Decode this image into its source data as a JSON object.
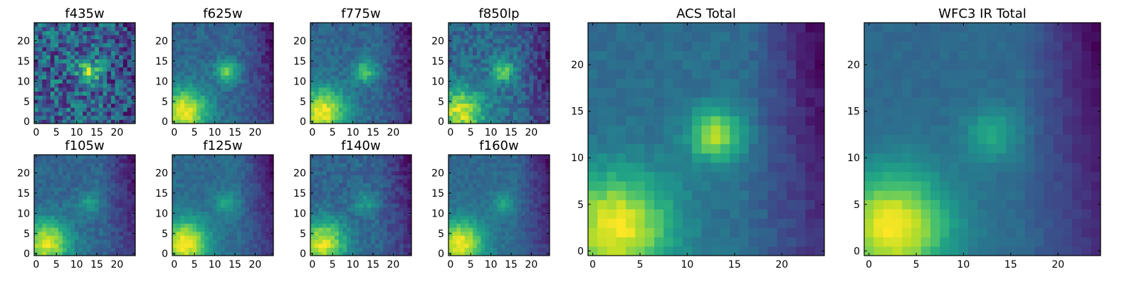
{
  "chart_data": [
    {
      "type": "heatmap",
      "title": "f435w",
      "xticks": [
        0,
        5,
        10,
        15,
        20
      ],
      "yticks": [
        0,
        5,
        10,
        15,
        20
      ],
      "xlim": [
        -0.5,
        24.5
      ],
      "ylim": [
        -0.5,
        24.5
      ],
      "colormap": "viridis",
      "blobs": {
        "corner": 0.0,
        "center": 0.55,
        "noise": 0.55,
        "right_dim": 0.15
      },
      "seed": 11
    },
    {
      "type": "heatmap",
      "title": "f625w",
      "xticks": [
        0,
        5,
        10,
        15,
        20
      ],
      "yticks": [
        0,
        5,
        10,
        15,
        20
      ],
      "xlim": [
        -0.5,
        24.5
      ],
      "ylim": [
        -0.5,
        24.5
      ],
      "colormap": "viridis",
      "blobs": {
        "corner": 0.85,
        "center": 0.6,
        "noise": 0.18,
        "right_dim": 0.35
      },
      "seed": 12
    },
    {
      "type": "heatmap",
      "title": "f775w",
      "xticks": [
        0,
        5,
        10,
        15,
        20
      ],
      "yticks": [
        0,
        5,
        10,
        15,
        20
      ],
      "xlim": [
        -0.5,
        24.5
      ],
      "ylim": [
        -0.5,
        24.5
      ],
      "colormap": "viridis",
      "blobs": {
        "corner": 0.9,
        "center": 0.55,
        "noise": 0.2,
        "right_dim": 0.4
      },
      "seed": 13
    },
    {
      "type": "heatmap",
      "title": "f850lp",
      "xticks": [
        0,
        5,
        10,
        15,
        20
      ],
      "yticks": [
        0,
        5,
        10,
        15,
        20
      ],
      "xlim": [
        -0.5,
        24.5
      ],
      "ylim": [
        -0.5,
        24.5
      ],
      "colormap": "viridis",
      "blobs": {
        "corner": 0.8,
        "center": 0.6,
        "noise": 0.3,
        "right_dim": 0.35
      },
      "seed": 14
    },
    {
      "type": "heatmap",
      "title": "f105w",
      "xticks": [
        0,
        5,
        10,
        15,
        20
      ],
      "yticks": [
        0,
        5,
        10,
        15,
        20
      ],
      "xlim": [
        -0.5,
        24.5
      ],
      "ylim": [
        -0.5,
        24.5
      ],
      "colormap": "viridis",
      "blobs": {
        "corner": 0.95,
        "center": 0.35,
        "noise": 0.2,
        "right_dim": 0.45
      },
      "seed": 15
    },
    {
      "type": "heatmap",
      "title": "f125w",
      "xticks": [
        0,
        5,
        10,
        15,
        20
      ],
      "yticks": [
        0,
        5,
        10,
        15,
        20
      ],
      "xlim": [
        -0.5,
        24.5
      ],
      "ylim": [
        -0.5,
        24.5
      ],
      "colormap": "viridis",
      "blobs": {
        "corner": 0.95,
        "center": 0.35,
        "noise": 0.15,
        "right_dim": 0.45
      },
      "seed": 16
    },
    {
      "type": "heatmap",
      "title": "f140w",
      "xticks": [
        0,
        5,
        10,
        15,
        20
      ],
      "yticks": [
        0,
        5,
        10,
        15,
        20
      ],
      "xlim": [
        -0.5,
        24.5
      ],
      "ylim": [
        -0.5,
        24.5
      ],
      "colormap": "viridis",
      "blobs": {
        "corner": 0.95,
        "center": 0.35,
        "noise": 0.22,
        "right_dim": 0.4
      },
      "seed": 17
    },
    {
      "type": "heatmap",
      "title": "f160w",
      "xticks": [
        0,
        5,
        10,
        15,
        20
      ],
      "yticks": [
        0,
        5,
        10,
        15,
        20
      ],
      "xlim": [
        -0.5,
        24.5
      ],
      "ylim": [
        -0.5,
        24.5
      ],
      "colormap": "viridis",
      "blobs": {
        "corner": 0.95,
        "center": 0.35,
        "noise": 0.15,
        "right_dim": 0.45
      },
      "seed": 18
    },
    {
      "type": "heatmap",
      "title": "ACS Total",
      "xticks": [
        0,
        5,
        10,
        15,
        20
      ],
      "yticks": [
        0,
        5,
        10,
        15,
        20
      ],
      "xlim": [
        -0.5,
        24.5
      ],
      "ylim": [
        -0.5,
        24.5
      ],
      "colormap": "viridis",
      "blobs": {
        "corner": 0.9,
        "center": 0.75,
        "noise": 0.12,
        "right_dim": 0.5
      },
      "seed": 19
    },
    {
      "type": "heatmap",
      "title": "WFC3 IR Total",
      "xticks": [
        0,
        5,
        10,
        15,
        20
      ],
      "yticks": [
        0,
        5,
        10,
        15,
        20
      ],
      "xlim": [
        -0.5,
        24.5
      ],
      "ylim": [
        -0.5,
        24.5
      ],
      "colormap": "viridis",
      "blobs": {
        "corner": 1.0,
        "center": 0.4,
        "noise": 0.08,
        "right_dim": 0.5
      },
      "seed": 20
    }
  ]
}
